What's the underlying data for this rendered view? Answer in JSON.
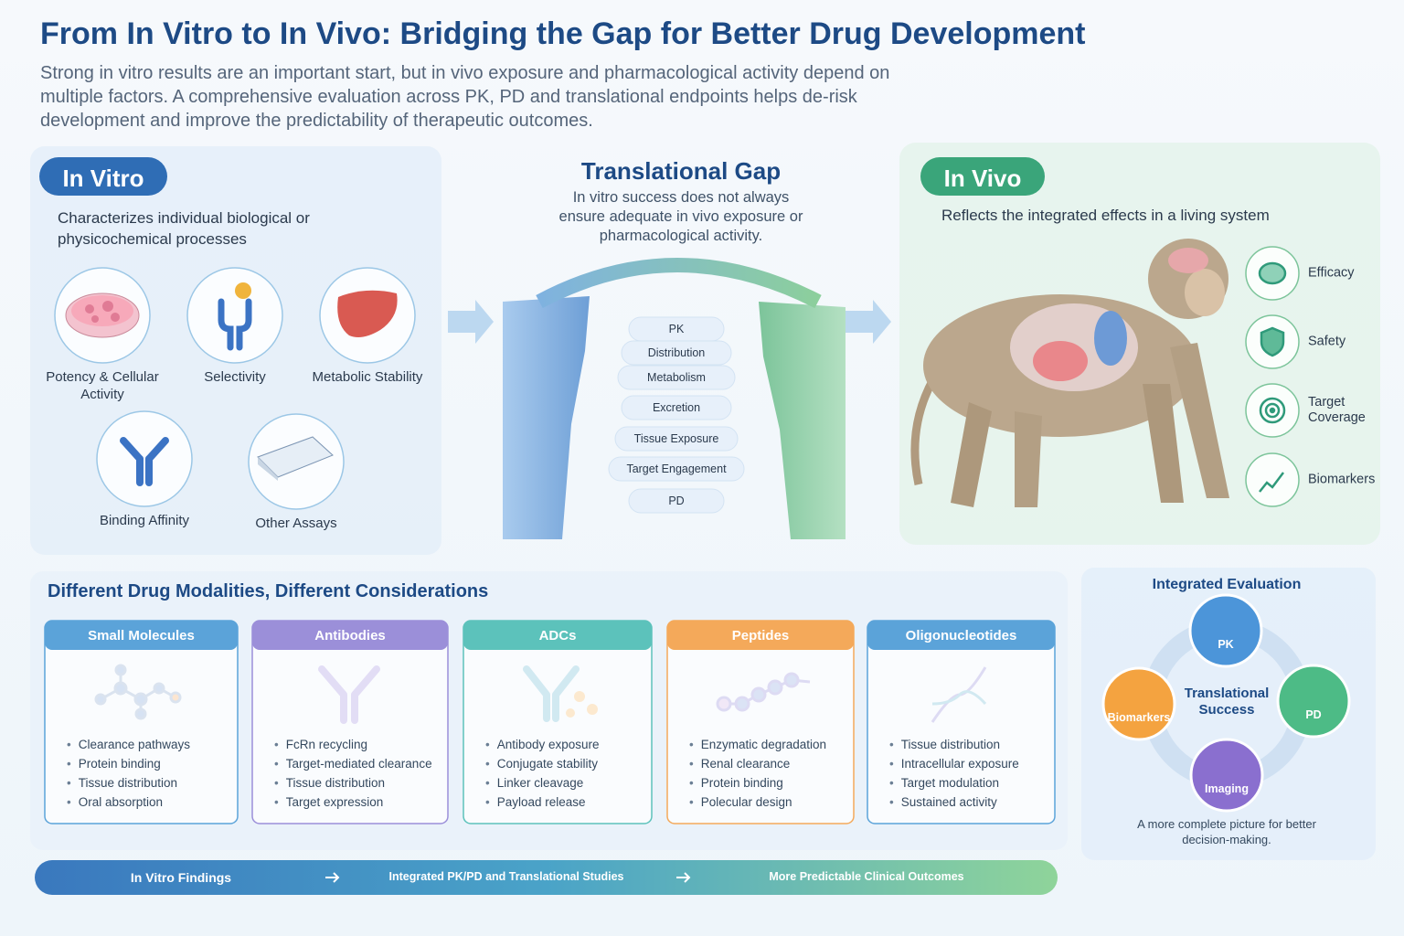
{
  "header": {
    "title": "From In Vitro to In Vivo: Bridging the Gap for Better Drug Development",
    "subtitle": "Strong in vitro results are an important start, but in vivo exposure and pharmacological activity depend on multiple factors. A comprehensive evaluation across PK, PD and translational endpoints helps de-risk development and improve the predictability of therapeutic outcomes."
  },
  "in_vitro": {
    "badge": "In Vitro",
    "description": "Characterizes individual biological or physicochemical processes",
    "assays": [
      "Potency & Cellular Activity",
      "Selectivity",
      "Metabolic Stability",
      "Binding Affinity",
      "Other Assays"
    ]
  },
  "gap": {
    "title": "Translational Gap",
    "description": "In vitro success does not always ensure adequate in vivo exposure or pharmacological activity.",
    "steps": [
      "PK",
      "Distribution",
      "Metabolism",
      "Excretion",
      "Tissue Exposure",
      "Target Engagement",
      "PD"
    ]
  },
  "in_vivo": {
    "badge": "In Vivo",
    "description": "Reflects the integrated effects in a living system",
    "outcomes": [
      "Efficacy",
      "Safety",
      "Target Coverage",
      "Biomarkers"
    ]
  },
  "modalities": {
    "title": "Different Drug Modalities, Different Considerations",
    "cards": [
      {
        "name": "Small Molecules",
        "points": [
          "Clearance pathways",
          "Protein binding",
          "Tissue distribution",
          "Oral absorption"
        ]
      },
      {
        "name": "Antibodies",
        "points": [
          "FcRn recycling",
          "Target-mediated clearance",
          "Tissue distribution",
          "Target expression"
        ]
      },
      {
        "name": "ADCs",
        "points": [
          "Antibody exposure",
          "Conjugate stability",
          "Linker cleavage",
          "Payload release"
        ]
      },
      {
        "name": "Peptides",
        "points": [
          "Enzymatic degradation",
          "Renal clearance",
          "Protein binding",
          "Polecular design"
        ]
      },
      {
        "name": "Oligonucleotides",
        "points": [
          "Tissue distribution",
          "Intracellular exposure",
          "Target modulation",
          "Sustained activity"
        ]
      }
    ]
  },
  "integrated": {
    "title": "Integrated Evaluation",
    "center": "Translational Success",
    "nodes": [
      "PK",
      "PD",
      "Imaging",
      "Biomarkers"
    ],
    "caption": "A more complete picture for better decision-making."
  },
  "flow": [
    "In Vitro Findings",
    "Integrated PK/PD and Translational Studies",
    "More Predictable Clinical Outcomes"
  ]
}
